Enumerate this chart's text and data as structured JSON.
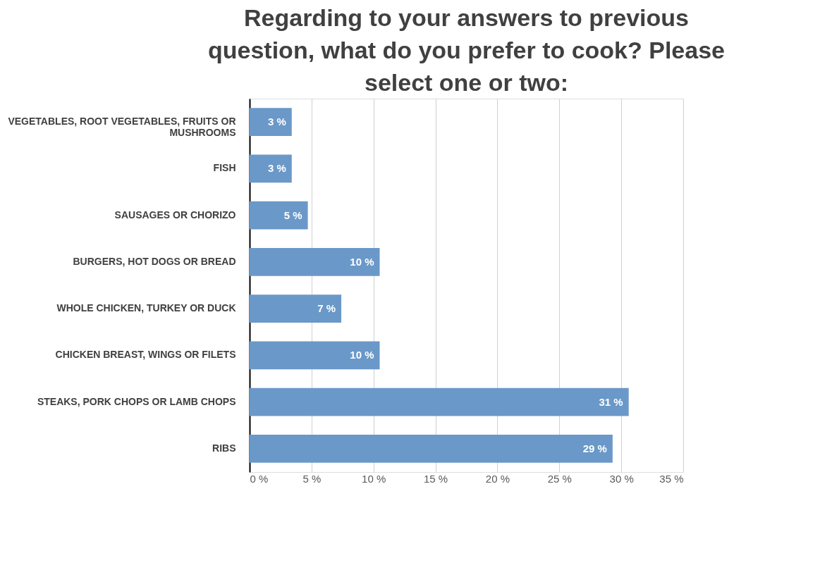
{
  "chart_data": {
    "type": "bar",
    "orientation": "horizontal",
    "title": "Regarding to your answers to previous question, what do you prefer to cook? Please select one or two:",
    "categories": [
      "VEGETABLES, ROOT VEGETABLES, FRUITS OR MUSHROOMS",
      "FISH",
      "SAUSAGES OR CHORIZO",
      "BURGERS, HOT DOGS OR BREAD",
      "WHOLE CHICKEN, TURKEY OR DUCK",
      "CHICKEN BREAST, WINGS OR FILETS",
      "STEAKS, PORK CHOPS OR LAMB CHOPS",
      "RIBS"
    ],
    "values": [
      3.4,
      3.4,
      4.7,
      10.5,
      7.4,
      10.5,
      30.6,
      29.3
    ],
    "value_labels": [
      "3 %",
      "3 %",
      "5 %",
      "10 %",
      "7 %",
      "10 %",
      "31 %",
      "29 %"
    ],
    "color": "#6a98c8",
    "xlim": [
      0,
      35
    ],
    "xticks": [
      {
        "value": 0,
        "label": "0 %"
      },
      {
        "value": 5,
        "label": "5 %"
      },
      {
        "value": 10,
        "label": "10 %"
      },
      {
        "value": 15,
        "label": "15 %"
      },
      {
        "value": 20,
        "label": "20 %"
      },
      {
        "value": 25,
        "label": "25 %"
      },
      {
        "value": 30,
        "label": "30 %"
      },
      {
        "value": 35,
        "label": "35 %"
      }
    ],
    "grid": "x"
  }
}
